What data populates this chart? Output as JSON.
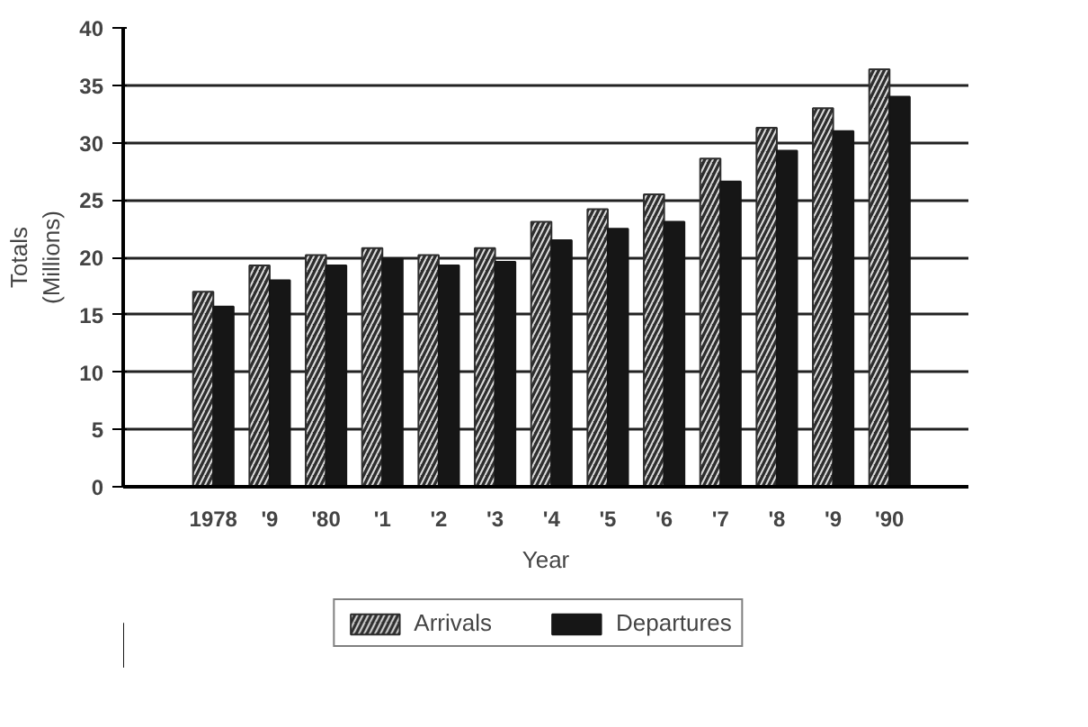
{
  "chart_data": {
    "type": "bar",
    "xlabel": "Year",
    "ylabel": "Totals\n(Millions)",
    "categories": [
      "1978",
      "'9",
      "'80",
      "'1",
      "'2",
      "'3",
      "'4",
      "'5",
      "'6",
      "'7",
      "'8",
      "'9",
      "'90"
    ],
    "series": [
      {
        "name": "Arrivals",
        "color": "#2e2e2e",
        "values": [
          17.0,
          19.3,
          20.2,
          20.8,
          20.2,
          20.8,
          23.1,
          24.2,
          25.5,
          28.6,
          31.3,
          33.0,
          36.4
        ]
      },
      {
        "name": "Departures",
        "color": "#161616",
        "values": [
          15.7,
          18.0,
          19.3,
          19.9,
          19.3,
          19.6,
          21.5,
          22.5,
          23.1,
          26.6,
          29.3,
          31.0,
          34.0
        ]
      }
    ],
    "ylim": [
      0,
      40
    ],
    "yticks": [
      0,
      5,
      10,
      15,
      20,
      25,
      30,
      35,
      40
    ],
    "grid": "y",
    "legend": "bottom"
  }
}
